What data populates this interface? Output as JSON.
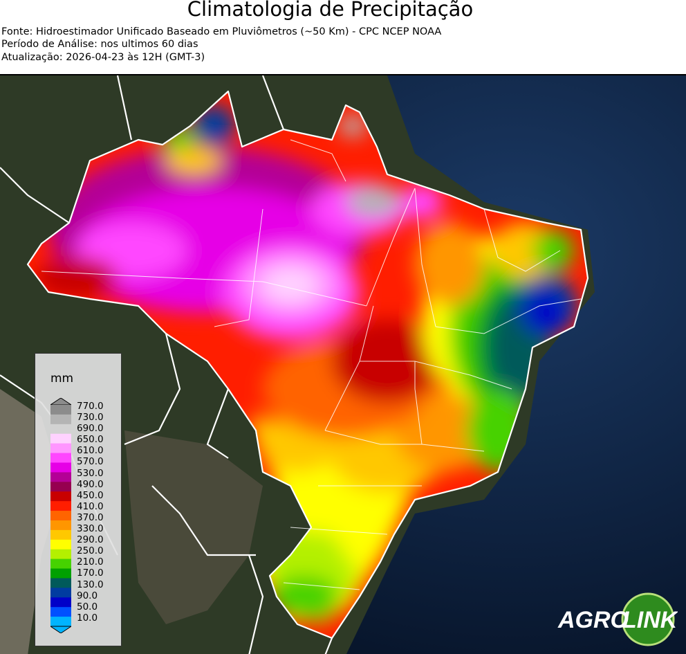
{
  "title": "Climatologia de Precipitação",
  "subtitle_lines": [
    "Fonte: Hidroestimador Unificado Baseado em Pluviômetros (~50 Km) - CPC NCEP NOAA",
    "Período de Análise: nos ultimos 60 dias",
    "Atualização: 2026-04-23 às 12H (GMT-3)"
  ],
  "legend": {
    "unit": "mm",
    "ticks": [
      "770.0",
      "730.0",
      "690.0",
      "650.0",
      "610.0",
      "570.0",
      "530.0",
      "490.0",
      "450.0",
      "410.0",
      "370.0",
      "330.0",
      "290.0",
      "250.0",
      "210.0",
      "170.0",
      "130.0",
      "90.0",
      "50.0",
      "10.0"
    ],
    "colors_top_to_bottom": [
      "#8c8c8c",
      "#b4b4b4",
      "#d2d2d2",
      "#ffd2ff",
      "#ff96ff",
      "#ff46ff",
      "#e600e6",
      "#b40096",
      "#960050",
      "#c80000",
      "#ff1e00",
      "#ff6400",
      "#ff9600",
      "#ffc800",
      "#ffff00",
      "#b4f000",
      "#46d200",
      "#00a000",
      "#005a5a",
      "#003ca0",
      "#0000c8",
      "#0050ff",
      "#00b4ff"
    ]
  },
  "logo": {
    "text_left": "AGRO",
    "text_right": "LINK"
  },
  "colors": {
    "ocean": "#0a1a33",
    "land": "#2e3a26",
    "border": "#ffffff"
  }
}
